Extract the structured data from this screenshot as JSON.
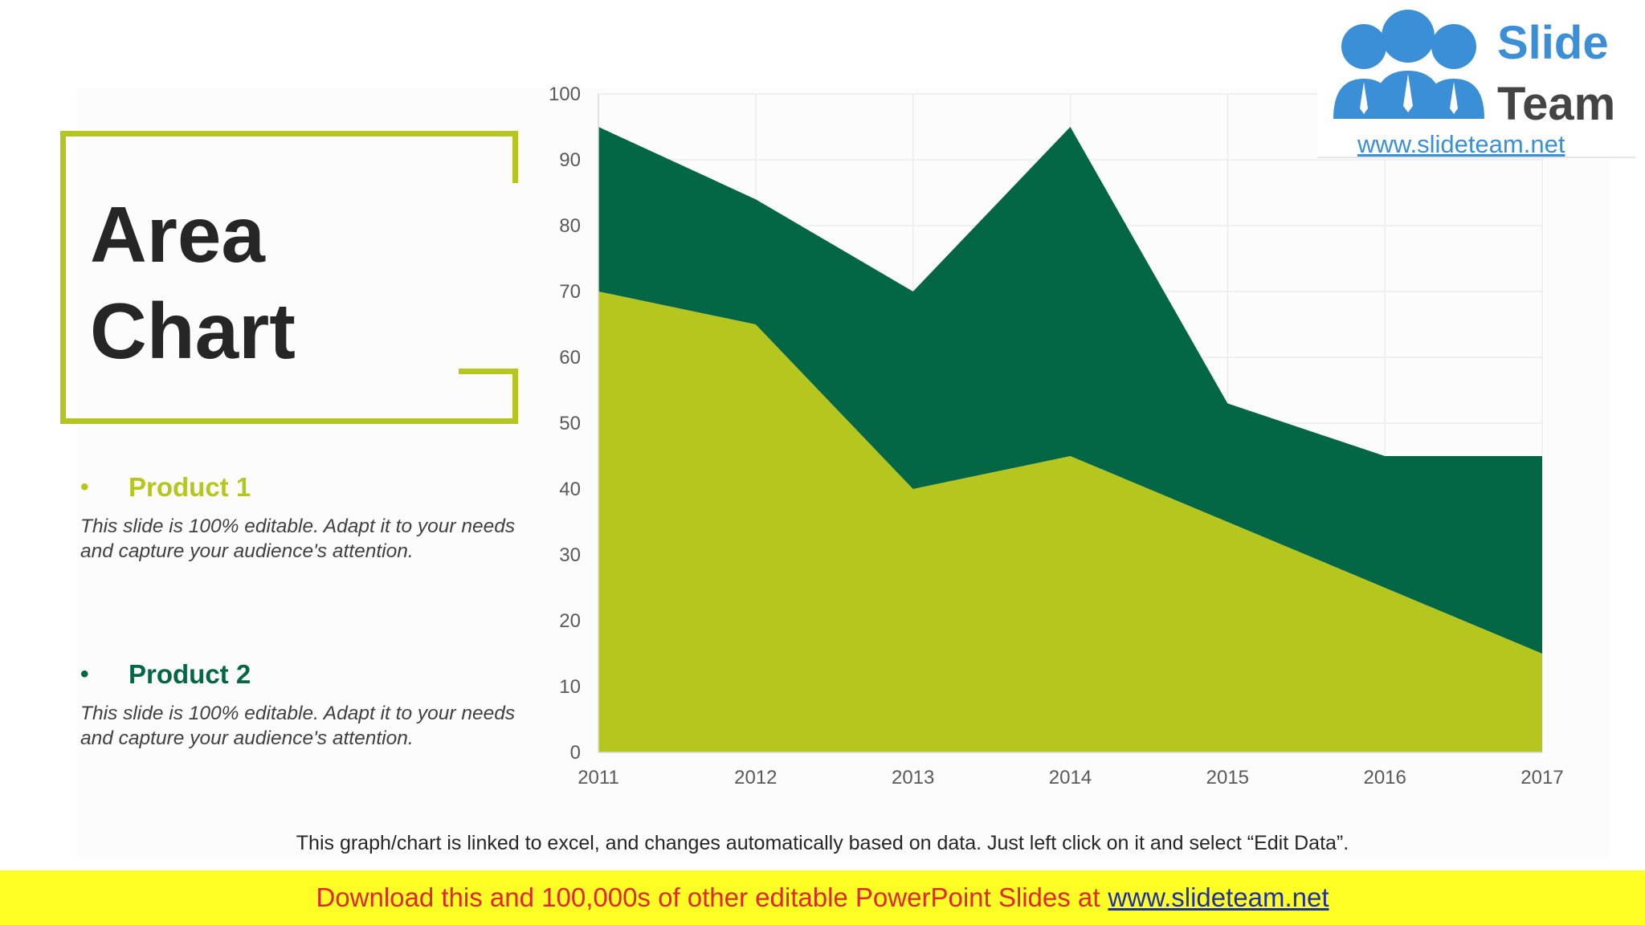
{
  "slide": {
    "title_line1": "Area",
    "title_line2": "Chart",
    "accent_color": "#b5c71f",
    "products": [
      {
        "name": "Product 1",
        "bullet": "•",
        "color": "#b5c71f",
        "description": "This slide is 100% editable. Adapt it to your needs and capture your audience's attention."
      },
      {
        "name": "Product 2",
        "bullet": "•",
        "color": "#036645",
        "description": "This slide is 100% editable. Adapt it to your needs and capture your audience's attention."
      }
    ],
    "chart_note": "This graph/chart is linked to excel, and changes automatically based on data. Just left click on it and select “Edit Data”."
  },
  "logo": {
    "word1": "Slide",
    "word2": "Team",
    "url": "www.slideteam.net",
    "color_blue": "#3a8fd6",
    "color_dark": "#444444"
  },
  "banner": {
    "text": "Download this and 100,000s of other editable PowerPoint Slides at",
    "link": "www.slideteam.net",
    "background": "#ffff26",
    "text_color": "#e3262a"
  },
  "chart_data": {
    "type": "area",
    "stacked": true,
    "title": "",
    "xlabel": "",
    "ylabel": "",
    "categories": [
      "2011",
      "2012",
      "2013",
      "2014",
      "2015",
      "2016",
      "2017"
    ],
    "ylim": [
      0,
      100
    ],
    "yticks": [
      0,
      10,
      20,
      30,
      40,
      50,
      60,
      70,
      80,
      90,
      100
    ],
    "grid": true,
    "legend": "none",
    "series": [
      {
        "name": "Product 1",
        "color": "#b5c71f",
        "values": [
          70,
          65,
          40,
          45,
          35,
          25,
          15
        ]
      },
      {
        "name": "Product 2",
        "color": "#036645",
        "values": [
          25,
          19,
          30,
          50,
          18,
          20,
          30
        ]
      }
    ]
  }
}
